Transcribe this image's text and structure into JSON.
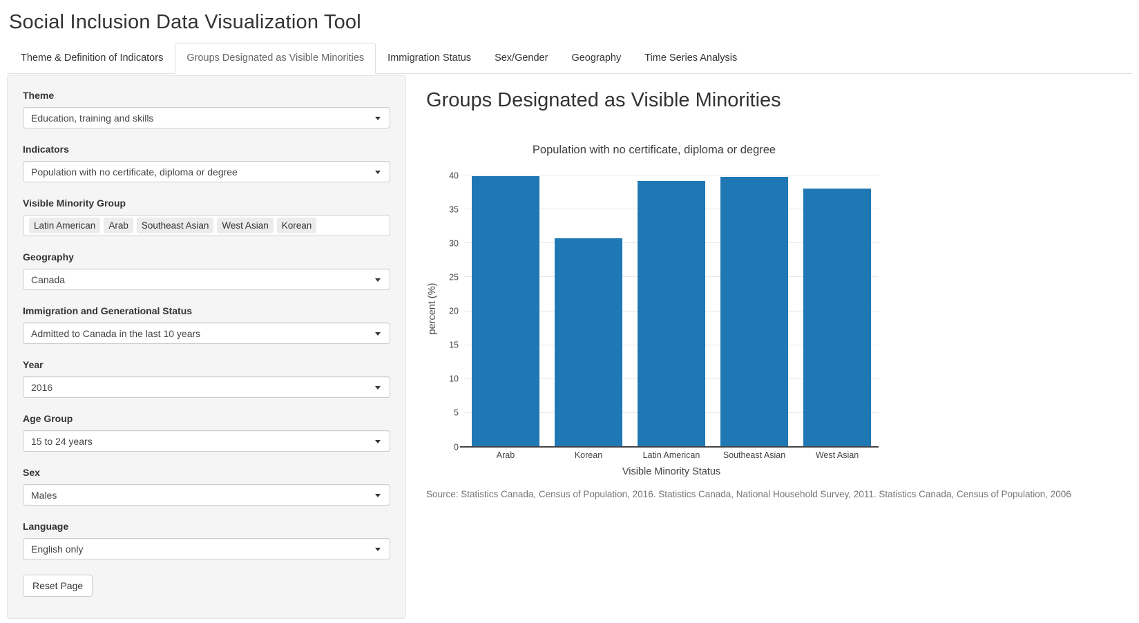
{
  "app": {
    "title": "Social Inclusion Data Visualization Tool"
  },
  "tabs": [
    {
      "label": "Theme & Definition of Indicators",
      "active": false
    },
    {
      "label": "Groups Designated as Visible Minorities",
      "active": true
    },
    {
      "label": "Immigration Status",
      "active": false
    },
    {
      "label": "Sex/Gender",
      "active": false
    },
    {
      "label": "Geography",
      "active": false
    },
    {
      "label": "Time Series Analysis",
      "active": false
    }
  ],
  "sidebar": {
    "fields": [
      {
        "type": "select",
        "label": "Theme",
        "value": "Education, training and skills"
      },
      {
        "type": "select",
        "label": "Indicators",
        "value": "Population with no certificate, diploma or degree"
      },
      {
        "type": "multiselect",
        "label": "Visible Minority Group",
        "values": [
          "Latin American",
          "Arab",
          "Southeast Asian",
          "West Asian",
          "Korean"
        ]
      },
      {
        "type": "select",
        "label": "Geography",
        "value": "Canada"
      },
      {
        "type": "select",
        "label": "Immigration and Generational Status",
        "value": "Admitted to Canada in the last 10 years"
      },
      {
        "type": "select",
        "label": "Year",
        "value": "2016"
      },
      {
        "type": "select",
        "label": "Age Group",
        "value": "15 to 24 years"
      },
      {
        "type": "select",
        "label": "Sex",
        "value": "Males"
      },
      {
        "type": "select",
        "label": "Language",
        "value": "English only"
      }
    ],
    "reset_label": "Reset Page"
  },
  "main": {
    "heading": "Groups Designated as Visible Minorities",
    "source": "Source: Statistics Canada, Census of Population, 2016. Statistics Canada, National Household Survey, 2011. Statistics Canada, Census of Population, 2006"
  },
  "chart_data": {
    "type": "bar",
    "title": "Population with no certificate, diploma or degree",
    "categories": [
      "Arab",
      "Korean",
      "Latin American",
      "Southeast Asian",
      "West Asian"
    ],
    "values": [
      39.9,
      30.7,
      39.2,
      39.8,
      38.1
    ],
    "xlabel": "Visible Minority Status",
    "ylabel": "percent (%)",
    "ylim": [
      0,
      40
    ],
    "ytick_step": 5,
    "bar_color": "#1f77b4",
    "grid": true,
    "legend": "none"
  }
}
